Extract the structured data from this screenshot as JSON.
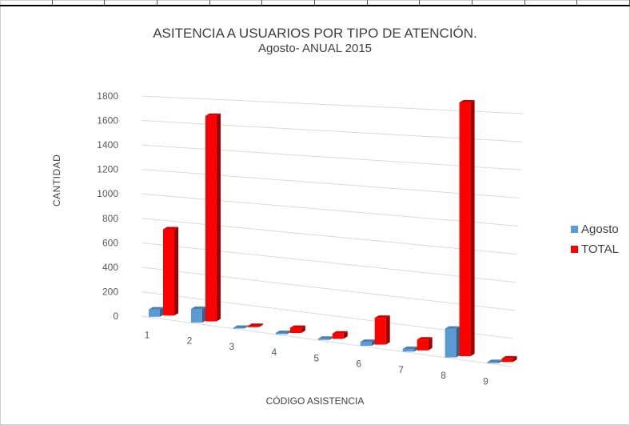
{
  "chart_data": {
    "type": "bar",
    "title": "ASITENCIA A USUARIOS POR TIPO DE ATENCIÓN.",
    "subtitle": "Agosto- ANUAL 2015",
    "xlabel": "CÓDIGO ASISTENCIA",
    "ylabel": "CANTIDAD",
    "categories": [
      "1",
      "2",
      "3",
      "4",
      "5",
      "6",
      "7",
      "8",
      "9"
    ],
    "yticks": [
      "0",
      "200",
      "400",
      "600",
      "800",
      "1000",
      "1200",
      "1400",
      "1600",
      "1800"
    ],
    "ylim": [
      0,
      1800
    ],
    "series": [
      {
        "name": "Agosto",
        "color": "#5b9bd5",
        "values": [
          60,
          110,
          5,
          10,
          10,
          30,
          20,
          210,
          8
        ]
      },
      {
        "name": "TOTAL",
        "color": "#ff0000",
        "values": [
          700,
          1640,
          10,
          40,
          40,
          200,
          80,
          1840,
          25
        ]
      }
    ],
    "legend_position": "right",
    "grid": true
  }
}
